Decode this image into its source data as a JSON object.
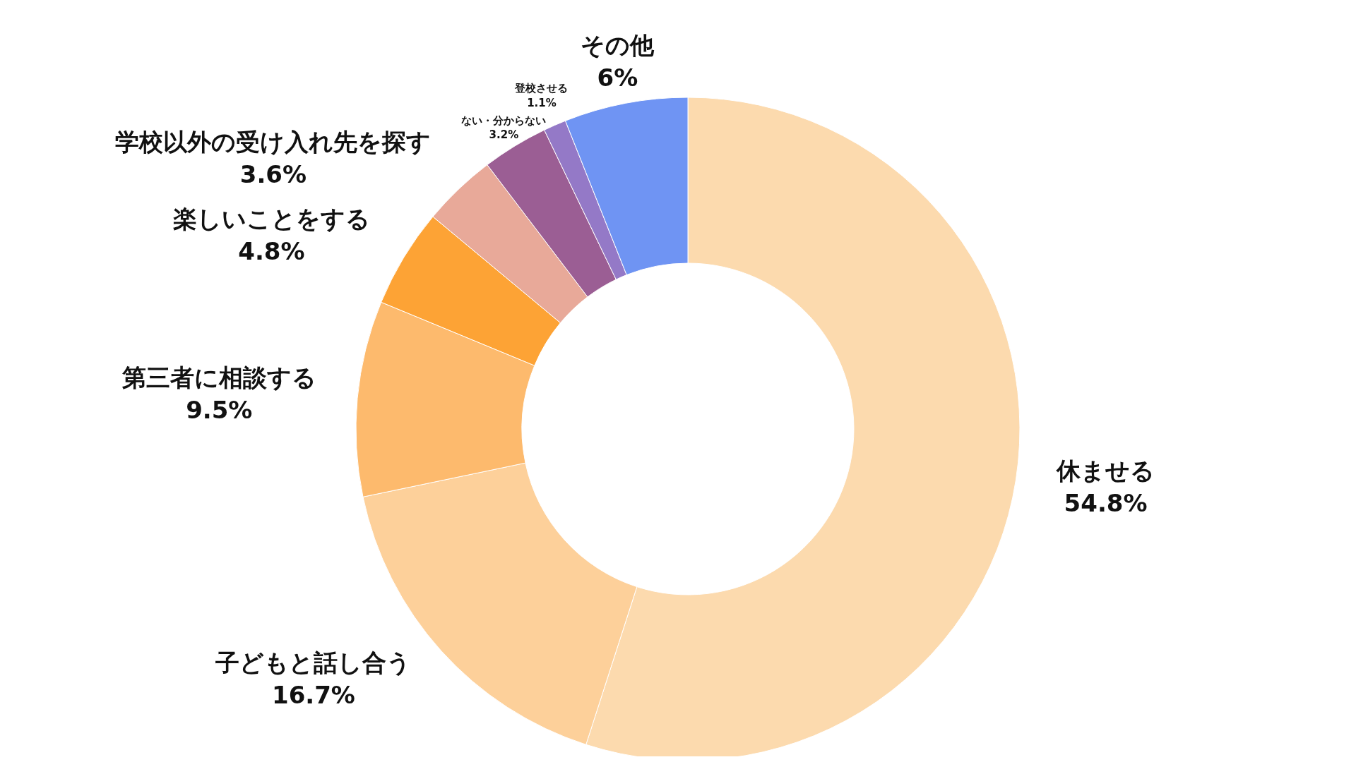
{
  "chart_data": {
    "type": "donut",
    "categories": [
      "休ませる",
      "子どもと話し合う",
      "第三者に相談する",
      "楽しいことをする",
      "学校以外の受け入れ先を探す",
      "ない・分からない",
      "登校させる",
      "その他"
    ],
    "values": [
      54.8,
      16.7,
      9.5,
      4.8,
      3.6,
      3.2,
      1.1,
      6
    ],
    "value_labels": [
      "54.8%",
      "16.7%",
      "9.5%",
      "4.8%",
      "3.6%",
      "3.2%",
      "1.1%",
      "6%"
    ],
    "colors": [
      "#fcdaae",
      "#fdd09a",
      "#fdba6d",
      "#fda335",
      "#e8a999",
      "#9b5e94",
      "#9479c7",
      "#6f94f3"
    ]
  }
}
